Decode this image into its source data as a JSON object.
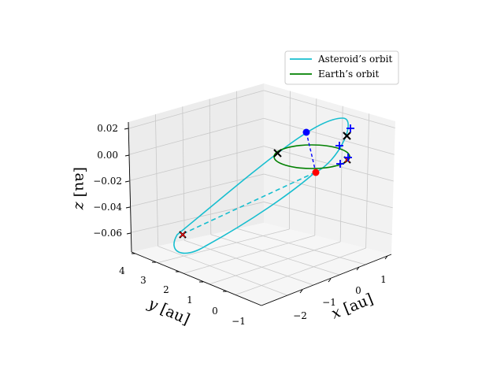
{
  "colors": {
    "asteroid": "#17becf",
    "earth": "#008000",
    "ascending": "#0000ff",
    "descending": "#ff0000",
    "cross_marker": "#000000",
    "pane_left": "#ececec",
    "pane_right": "#f2f2f2",
    "pane_floor": "#f6f6f6",
    "grid": "#c8c8c8"
  },
  "chart_data": {
    "type": "line3d",
    "legend": {
      "placement": "top-right",
      "entries": [
        {
          "label": "Asteroid’s orbit",
          "color": "#17becf"
        },
        {
          "label": "Earth’s orbit",
          "color": "#008000"
        }
      ]
    },
    "axes": {
      "x": {
        "label_var": "x",
        "label_unit": "[au]",
        "ticks": [
          "−2",
          "−1",
          "0",
          "1"
        ],
        "range": [
          -2.7,
          1.5
        ]
      },
      "y": {
        "label_var": "y",
        "label_unit": "[au]",
        "ticks": [
          "−1",
          "0",
          "1",
          "2",
          "3",
          "4"
        ],
        "range": [
          -1.3,
          4.0
        ]
      },
      "z": {
        "label_var": "z",
        "label_unit": "[au]",
        "ticks": [
          "0.02",
          "0.00",
          "−0.02",
          "−0.04",
          "−0.06"
        ],
        "range": [
          -0.07,
          0.025
        ]
      }
    },
    "grid": true,
    "series": [
      {
        "name": "Asteroid’s orbit",
        "kind": "ellipse",
        "style": "solid above ecliptic, dashed below",
        "color": "#17becf"
      },
      {
        "name": "Earth’s orbit",
        "kind": "circle",
        "style": "solid",
        "color": "#008000"
      }
    ],
    "markers": [
      {
        "kind": "node",
        "shape": "circle",
        "color": "#0000ff",
        "note": "ascending node"
      },
      {
        "kind": "node",
        "shape": "circle",
        "color": "#ff0000",
        "note": "descending node"
      },
      {
        "kind": "point",
        "shape": "x",
        "color": "#000000"
      },
      {
        "kind": "point",
        "shape": "plus",
        "color": "#0000ff"
      }
    ]
  }
}
